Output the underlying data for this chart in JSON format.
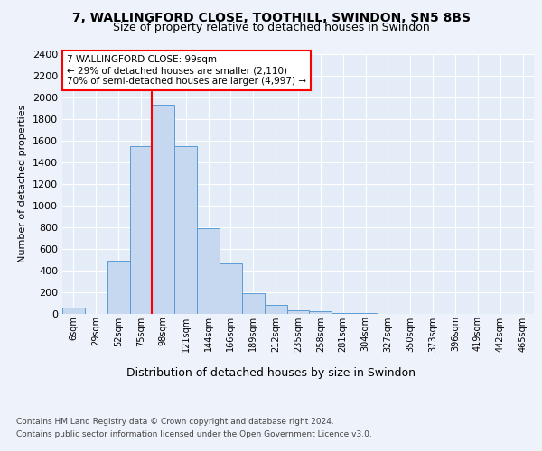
{
  "title_line1": "7, WALLINGFORD CLOSE, TOOTHILL, SWINDON, SN5 8BS",
  "title_line2": "Size of property relative to detached houses in Swindon",
  "xlabel": "Distribution of detached houses by size in Swindon",
  "ylabel": "Number of detached properties",
  "footnote1": "Contains HM Land Registry data © Crown copyright and database right 2024.",
  "footnote2": "Contains public sector information licensed under the Open Government Licence v3.0.",
  "categories": [
    "6sqm",
    "29sqm",
    "52sqm",
    "75sqm",
    "98sqm",
    "121sqm",
    "144sqm",
    "166sqm",
    "189sqm",
    "212sqm",
    "235sqm",
    "258sqm",
    "281sqm",
    "304sqm",
    "327sqm",
    "350sqm",
    "373sqm",
    "396sqm",
    "419sqm",
    "442sqm",
    "465sqm"
  ],
  "values": [
    55,
    0,
    490,
    1550,
    1930,
    1550,
    790,
    460,
    190,
    80,
    30,
    20,
    5,
    5,
    0,
    0,
    0,
    0,
    0,
    0,
    0
  ],
  "bar_color": "#c5d8f0",
  "bar_edge_color": "#5b9bd5",
  "ylim": [
    0,
    2400
  ],
  "yticks": [
    0,
    200,
    400,
    600,
    800,
    1000,
    1200,
    1400,
    1600,
    1800,
    2000,
    2200,
    2400
  ],
  "property_bin_index": 4,
  "annotation_text": "7 WALLINGFORD CLOSE: 99sqm\n← 29% of detached houses are smaller (2,110)\n70% of semi-detached houses are larger (4,997) →",
  "annotation_box_color": "white",
  "annotation_box_edge_color": "red",
  "vline_color": "red",
  "background_color": "#eef2fa",
  "plot_bg_color": "#e4ecf7"
}
